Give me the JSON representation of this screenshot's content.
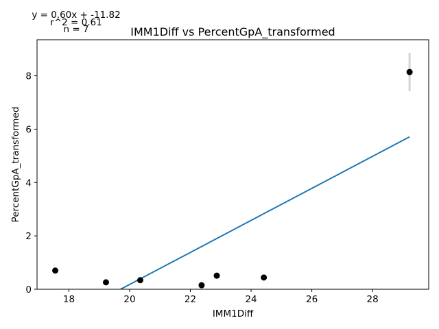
{
  "chart_data": {
    "type": "scatter",
    "title": "IMM1Diff vs PercentGpA_transformed",
    "xlabel": "IMM1Diff",
    "ylabel": "PercentGpA_transformed",
    "xlim": [
      16.95,
      29.85
    ],
    "ylim": [
      0,
      9.35
    ],
    "xticks": [
      18,
      20,
      22,
      24,
      26,
      28
    ],
    "yticks": [
      0,
      2,
      4,
      6,
      8
    ],
    "points": [
      {
        "x": 17.55,
        "y": 0.7
      },
      {
        "x": 19.22,
        "y": 0.26
      },
      {
        "x": 20.35,
        "y": 0.34
      },
      {
        "x": 22.37,
        "y": 0.15
      },
      {
        "x": 22.87,
        "y": 0.51
      },
      {
        "x": 24.42,
        "y": 0.44
      },
      {
        "x": 29.22,
        "y": 8.14,
        "err": 0.72
      }
    ],
    "fit": {
      "slope": 0.6,
      "intercept": -11.82,
      "x_start": 19.7,
      "x_end": 29.22
    },
    "annotations": [
      "y = 0.60x + -11.82",
      "r^2 = 0.61",
      "n = 7"
    ],
    "colors": {
      "points": "#000000",
      "fit": "#1f77b4",
      "errorbar": "#d3d3d3"
    },
    "grid": false
  }
}
